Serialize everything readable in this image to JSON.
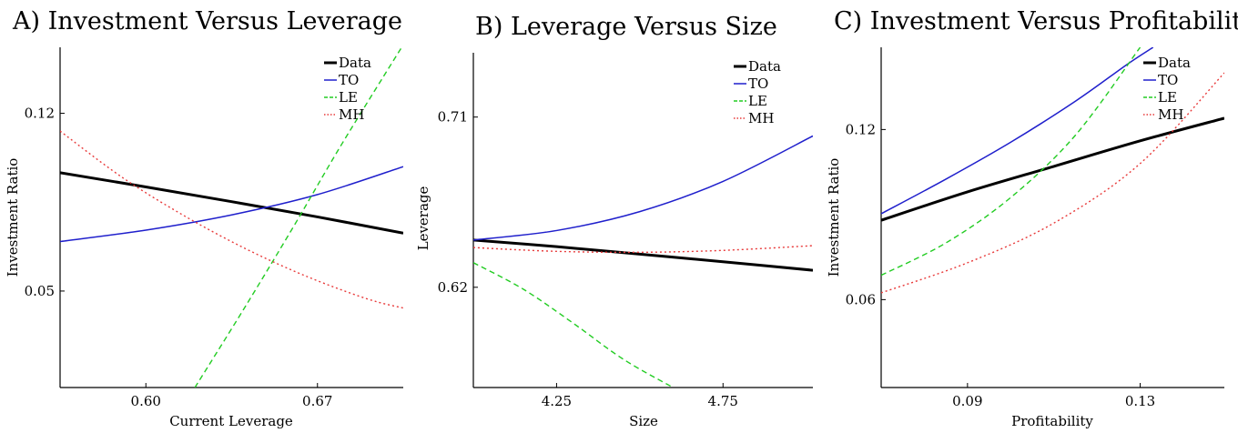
{
  "chart_data": [
    {
      "type": "line",
      "title": "A) Investment Versus Leverage",
      "xlabel": "Current Leverage",
      "ylabel": "Investment Ratio",
      "xlim": [
        0.565,
        0.705
      ],
      "ylim": [
        0.012,
        0.146
      ],
      "xticks": [
        0.6,
        0.67
      ],
      "xticklabels": [
        "0.60",
        "0.67"
      ],
      "yticks": [
        0.05,
        0.12
      ],
      "yticklabels": [
        "0.05",
        "0.12"
      ],
      "grid": false,
      "legend": "top-right",
      "series": [
        {
          "name": "Data",
          "color": "#000000",
          "dash": "solid",
          "width": 3.0,
          "x": [
            0.565,
            0.6,
            0.635,
            0.67,
            0.705
          ],
          "y": [
            0.0966,
            0.091,
            0.0852,
            0.0792,
            0.0728
          ]
        },
        {
          "name": "TO",
          "color": "#1f1fcc",
          "dash": "solid",
          "width": 1.5,
          "x": [
            0.565,
            0.6,
            0.635,
            0.67,
            0.705
          ],
          "y": [
            0.0695,
            0.074,
            0.08,
            0.088,
            0.099
          ]
        },
        {
          "name": "LE",
          "color": "#22cc22",
          "dash": "6 4",
          "width": 1.4,
          "x": [
            0.62,
            0.64,
            0.66,
            0.68,
            0.705
          ],
          "y": [
            0.012,
            0.043,
            0.075,
            0.108,
            0.147
          ]
        },
        {
          "name": "MH",
          "color": "#e83a3a",
          "dash": "2 3",
          "width": 1.4,
          "x": [
            0.565,
            0.59,
            0.615,
            0.64,
            0.665,
            0.69,
            0.705
          ],
          "y": [
            0.113,
            0.095,
            0.08,
            0.067,
            0.056,
            0.047,
            0.0433
          ]
        }
      ]
    },
    {
      "type": "line",
      "title": "B) Leverage Versus Size",
      "xlabel": "Size",
      "ylabel": "Leverage",
      "xlim": [
        4.0,
        5.02
      ],
      "ylim": [
        0.567,
        0.744
      ],
      "xticks": [
        4.25,
        4.75
      ],
      "xticklabels": [
        "4.25",
        "4.75"
      ],
      "yticks": [
        0.62,
        0.71
      ],
      "yticklabels": [
        "0.62",
        "0.71"
      ],
      "grid": false,
      "legend": "top-right",
      "series": [
        {
          "name": "Data",
          "color": "#000000",
          "dash": "solid",
          "width": 3.0,
          "x": [
            4.0,
            4.25,
            4.5,
            4.75,
            5.02
          ],
          "y": [
            0.645,
            0.6415,
            0.6375,
            0.6335,
            0.629
          ]
        },
        {
          "name": "TO",
          "color": "#1f1fcc",
          "dash": "solid",
          "width": 1.5,
          "x": [
            4.0,
            4.25,
            4.5,
            4.75,
            5.02
          ],
          "y": [
            0.645,
            0.65,
            0.66,
            0.676,
            0.7
          ]
        },
        {
          "name": "LE",
          "color": "#22cc22",
          "dash": "6 4",
          "width": 1.4,
          "x": [
            4.0,
            4.15,
            4.3,
            4.45,
            4.6
          ],
          "y": [
            0.633,
            0.619,
            0.601,
            0.582,
            0.567
          ]
        },
        {
          "name": "MH",
          "color": "#e83a3a",
          "dash": "2 3",
          "width": 1.4,
          "x": [
            4.0,
            4.25,
            4.5,
            4.75,
            5.02
          ],
          "y": [
            0.641,
            0.639,
            0.6385,
            0.6395,
            0.642
          ]
        }
      ]
    },
    {
      "type": "line",
      "title": "C) Investment Versus Profitability",
      "xlabel": "Profitability",
      "ylabel": "Investment Ratio",
      "xlim": [
        0.07,
        0.1495
      ],
      "ylim": [
        0.029,
        0.149
      ],
      "xticks": [
        0.09,
        0.13
      ],
      "xticklabels": [
        "0.09",
        "0.13"
      ],
      "yticks": [
        0.06,
        0.12
      ],
      "yticklabels": [
        "0.06",
        "0.12"
      ],
      "grid": false,
      "legend": "top-right",
      "series": [
        {
          "name": "Data",
          "color": "#000000",
          "dash": "solid",
          "width": 3.0,
          "x": [
            0.07,
            0.09,
            0.11,
            0.13,
            0.1495
          ],
          "y": [
            0.088,
            0.098,
            0.107,
            0.116,
            0.124
          ]
        },
        {
          "name": "TO",
          "color": "#1f1fcc",
          "dash": "solid",
          "width": 1.5,
          "x": [
            0.07,
            0.085,
            0.1,
            0.115,
            0.127,
            0.133
          ],
          "y": [
            0.0903,
            0.1025,
            0.1155,
            0.13,
            0.143,
            0.149
          ]
        },
        {
          "name": "LE",
          "color": "#22cc22",
          "dash": "6 4",
          "width": 1.4,
          "x": [
            0.07,
            0.085,
            0.1,
            0.115,
            0.13
          ],
          "y": [
            0.0686,
            0.08,
            0.096,
            0.118,
            0.149
          ]
        },
        {
          "name": "MH",
          "color": "#e83a3a",
          "dash": "2 3",
          "width": 1.4,
          "x": [
            0.07,
            0.09,
            0.11,
            0.13,
            0.1495
          ],
          "y": [
            0.0624,
            0.073,
            0.087,
            0.108,
            0.14
          ]
        }
      ]
    }
  ]
}
